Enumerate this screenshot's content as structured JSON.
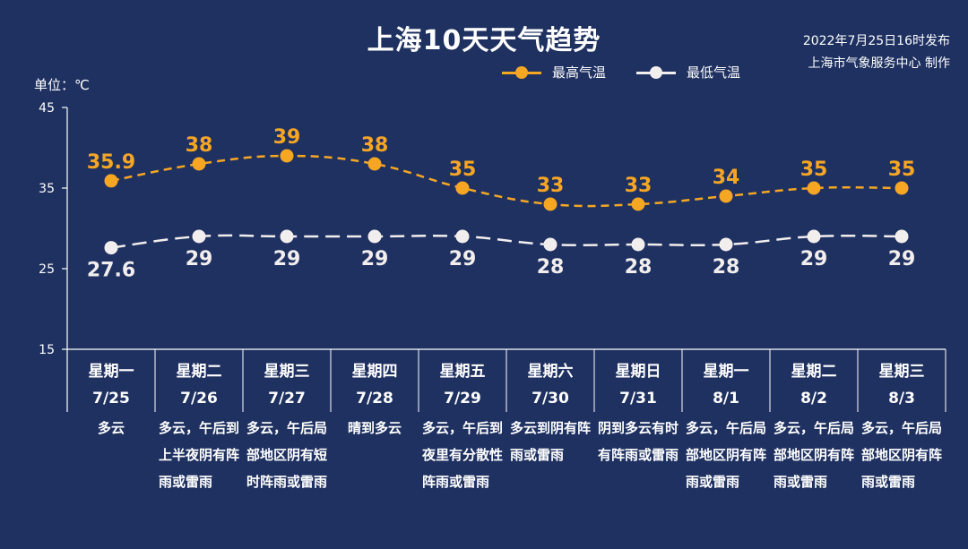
{
  "title": "上海10天天气趋势",
  "publish": {
    "line1": "2022年7月25日16时发布",
    "line2": "上海市气象服务中心 制作"
  },
  "unit_label": "单位：℃",
  "colors": {
    "background": "#1f3161",
    "high": "#f5a623",
    "low": "#f2eeee",
    "axis": "#ffffff"
  },
  "chart_data": {
    "type": "line",
    "title": "上海10天天气趋势",
    "ylabel": "单位：℃",
    "ylim": [
      15,
      45
    ],
    "yticks": [
      15,
      25,
      35,
      45
    ],
    "grid": false,
    "legend": "top",
    "categories": [
      "7/25",
      "7/26",
      "7/27",
      "7/28",
      "7/29",
      "7/30",
      "7/31",
      "8/1",
      "8/2",
      "8/3"
    ],
    "series": [
      {
        "name": "最高气温",
        "values": [
          35.9,
          38,
          39,
          38,
          35,
          33,
          33,
          34,
          35,
          35
        ],
        "labels": [
          "35.9",
          "38",
          "39",
          "38",
          "35",
          "33",
          "33",
          "34",
          "35",
          "35"
        ]
      },
      {
        "name": "最低气温",
        "values": [
          27.6,
          29,
          29,
          29,
          29,
          28,
          28,
          28,
          29,
          29
        ],
        "labels": [
          "27.6",
          "29",
          "29",
          "29",
          "29",
          "28",
          "28",
          "28",
          "29",
          "29"
        ]
      }
    ]
  },
  "days": [
    {
      "week": "星期一",
      "date": "7/25",
      "desc": "多云"
    },
    {
      "week": "星期二",
      "date": "7/26",
      "desc": "多云，午后到上半夜阴有阵雨或雷雨"
    },
    {
      "week": "星期三",
      "date": "7/27",
      "desc": "多云，午后局部地区阴有短时阵雨或雷雨"
    },
    {
      "week": "星期四",
      "date": "7/28",
      "desc": "晴到多云"
    },
    {
      "week": "星期五",
      "date": "7/29",
      "desc": "多云，午后到夜里有分散性阵雨或雷雨"
    },
    {
      "week": "星期六",
      "date": "7/30",
      "desc": "多云到阴有阵雨或雷雨"
    },
    {
      "week": "星期日",
      "date": "7/31",
      "desc": "阴到多云有时有阵雨或雷雨"
    },
    {
      "week": "星期一",
      "date": "8/1",
      "desc": "多云，午后局部地区阴有阵雨或雷雨"
    },
    {
      "week": "星期二",
      "date": "8/2",
      "desc": "多云，午后局部地区阴有阵雨或雷雨"
    },
    {
      "week": "星期三",
      "date": "8/3",
      "desc": "多云，午后局部地区阴有阵雨或雷雨"
    }
  ]
}
